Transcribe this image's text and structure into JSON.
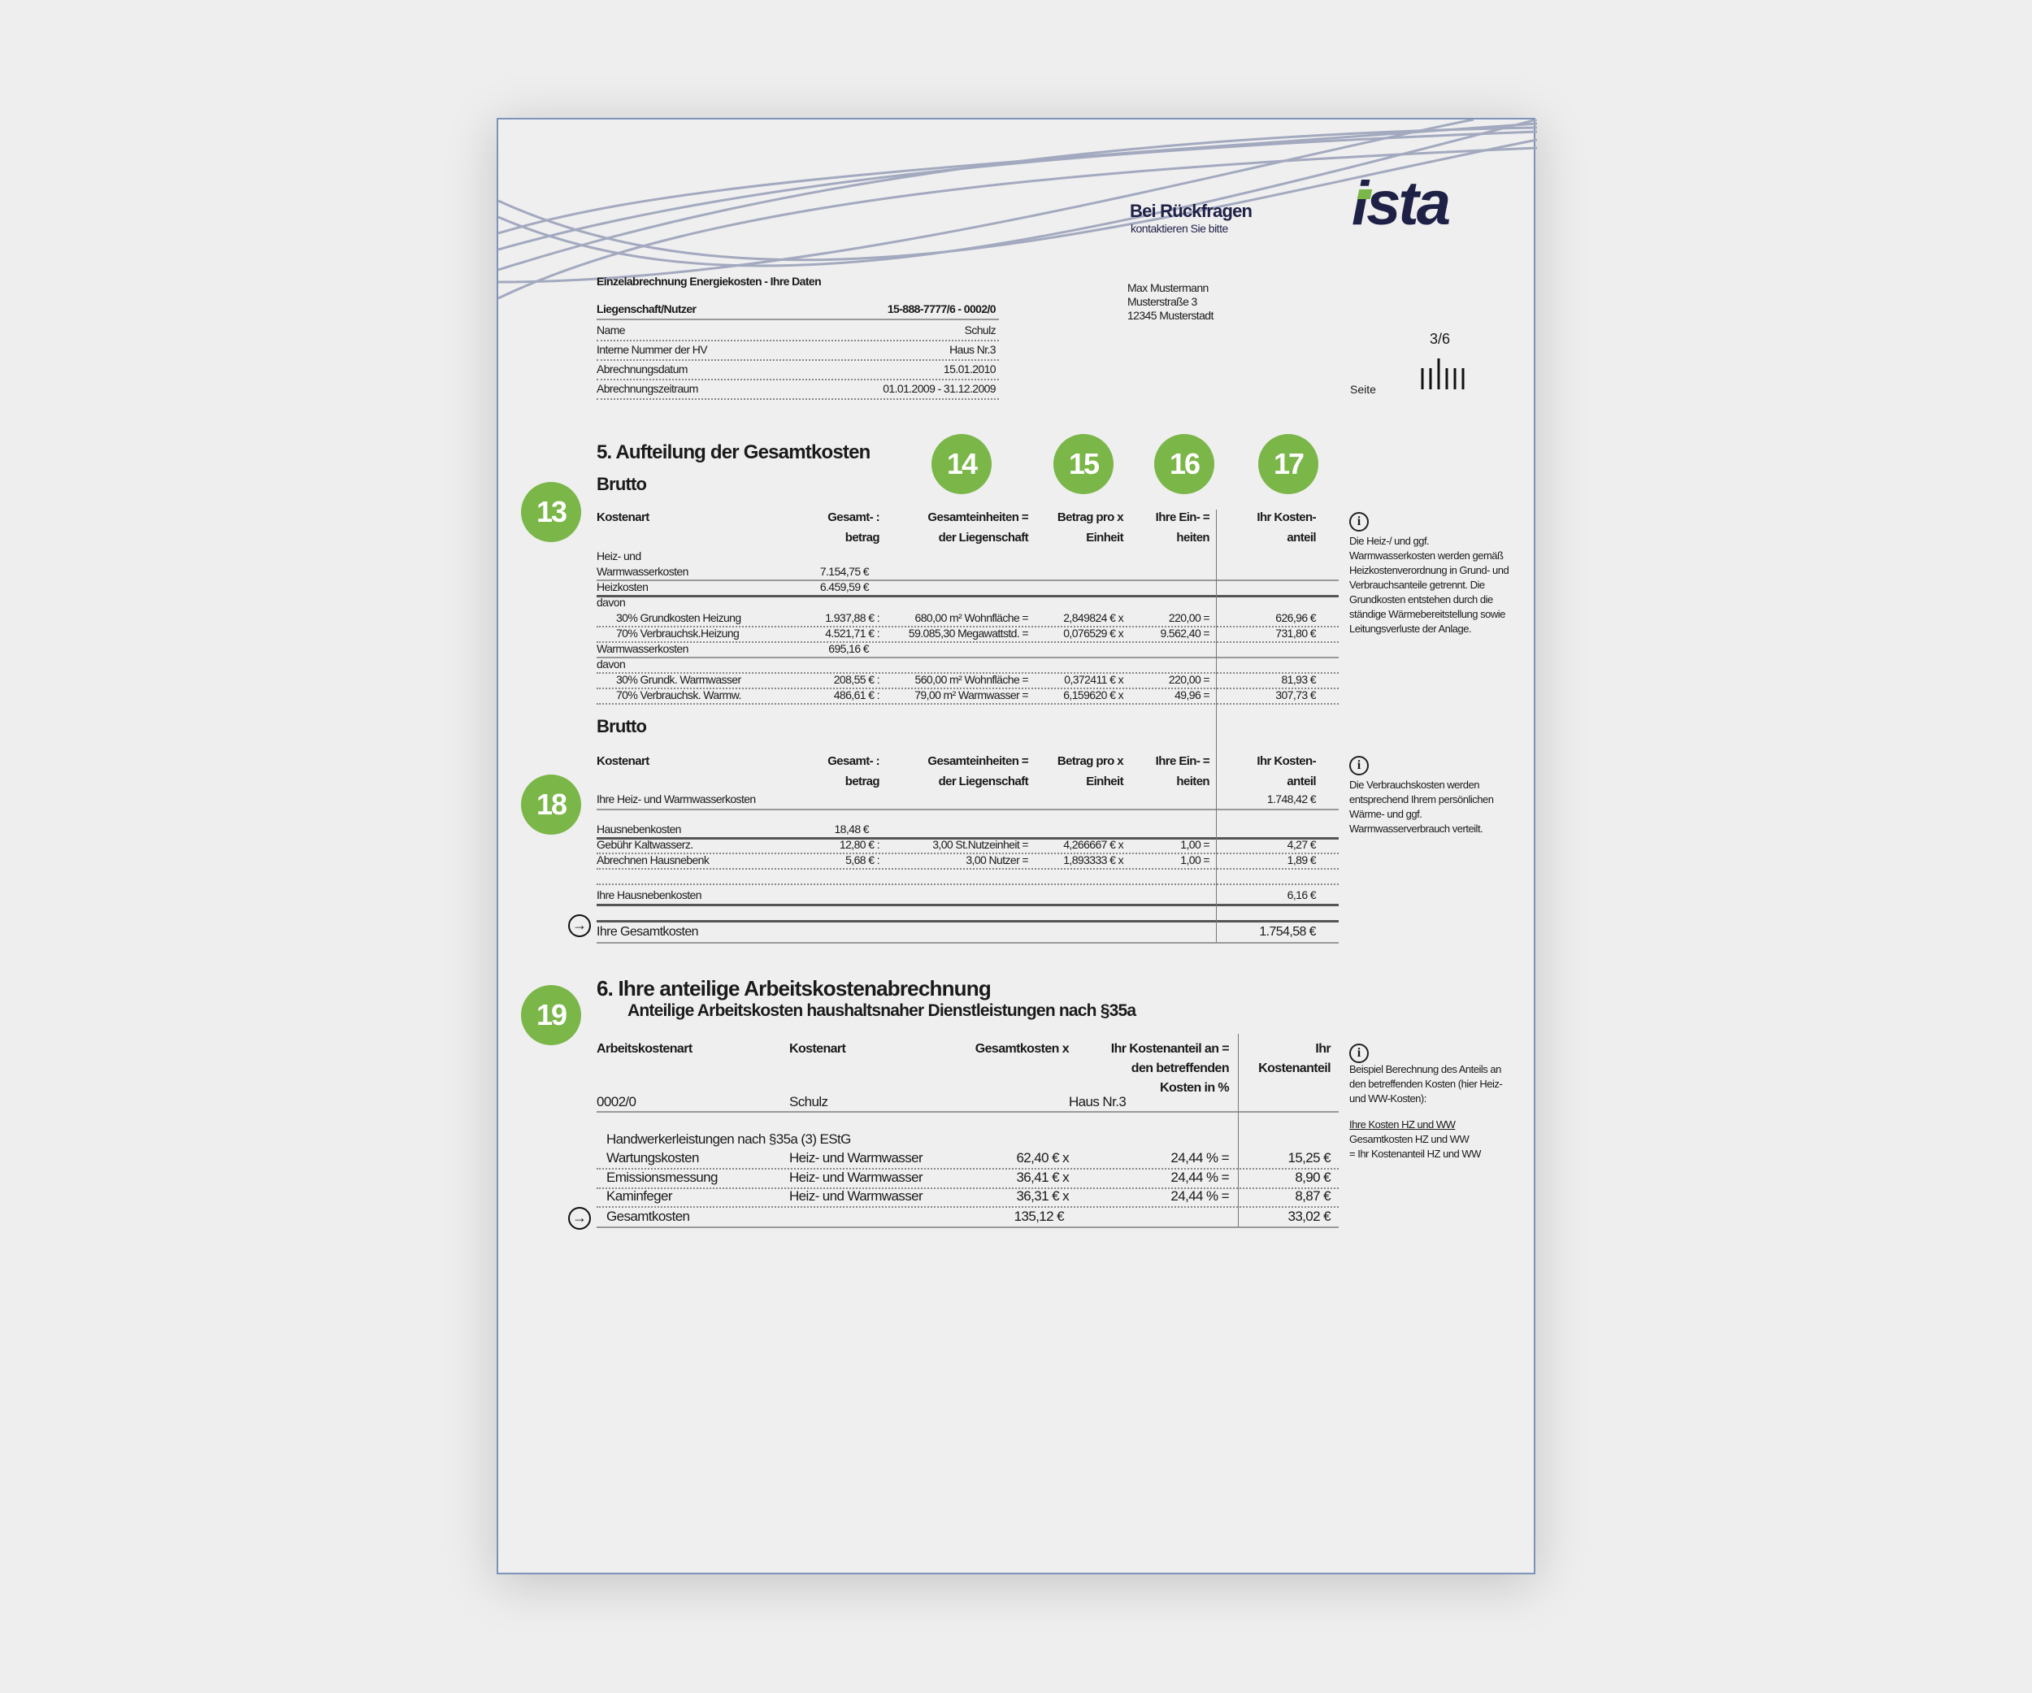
{
  "header": {
    "contact_title": "Bei Rückfragen",
    "contact_sub": "kontaktieren Sie bitte",
    "logo": "ista",
    "brand_colors": {
      "navy": "#1e2046",
      "green": "#7ab648"
    },
    "address": [
      "Max Mustermann",
      "Musterstraße 3",
      "12345 Musterstadt"
    ],
    "page_number": "3/6",
    "page_label": "Seite"
  },
  "info": {
    "title": "Einzelabrechnung Energiekosten - Ihre Daten",
    "rows": [
      {
        "label": "Liegenschaft/Nutzer",
        "value": "15-888-7777/6 - 0002/0"
      },
      {
        "label": "Name",
        "value": "Schulz"
      },
      {
        "label": "Interne Nummer der HV",
        "value": "Haus Nr.3"
      },
      {
        "label": "Abrechnungsdatum",
        "value": "15.01.2010"
      },
      {
        "label": "Abrechnungszeitraum",
        "value": "01.01.2009 - 31.12.2009"
      }
    ]
  },
  "markers": [
    "13",
    "14",
    "15",
    "16",
    "17",
    "18",
    "19"
  ],
  "section5": {
    "title": "5. Aufteilung der Gesamtkosten",
    "subtitle": "Brutto",
    "headers": [
      [
        "Kostenart",
        ""
      ],
      [
        "Gesamt- :",
        "betrag"
      ],
      [
        "Gesamteinheiten =",
        "der Liegenschaft"
      ],
      [
        "Betrag pro x",
        "Einheit"
      ],
      [
        "Ihre Ein- =",
        "heiten"
      ],
      [
        "Ihr Kosten-",
        "anteil"
      ]
    ],
    "rows": [
      [
        "Heiz- und",
        "",
        "",
        "",
        "",
        ""
      ],
      [
        "Warmwasserkosten",
        "7.154,75 €",
        "",
        "",
        "",
        ""
      ],
      [
        "Heizkosten",
        "6.459,59 €",
        "",
        "",
        "",
        ""
      ],
      [
        "davon",
        "",
        "",
        "",
        "",
        ""
      ],
      [
        "30% Grundkosten Heizung",
        "1.937,88 € :",
        "680,00 m² Wohnfläche =",
        "2,849824 € x",
        "220,00 =",
        "626,96 €"
      ],
      [
        "70% Verbrauchsk.Heizung",
        "4.521,71 € :",
        "59.085,30 Megawattstd. =",
        "0,076529 € x",
        "9.562,40 =",
        "731,80 €"
      ],
      [
        "Warmwasserkosten",
        "695,16 €",
        "",
        "",
        "",
        ""
      ],
      [
        "davon",
        "",
        "",
        "",
        "",
        ""
      ],
      [
        "30% Grundk. Warmwasser",
        "208,55 € :",
        "560,00 m² Wohnfläche =",
        "0,372411 € x",
        "220,00 =",
        "81,93 €"
      ],
      [
        "70% Verbrauchsk. Warmw.",
        "486,61 € :",
        "79,00 m² Warmwasser =",
        "6,159620 € x",
        "49,96 =",
        "307,73 €"
      ]
    ],
    "info": "Die Heiz-/ und ggf. Warmwasserkosten werden gemäß Heizkostenverordnung in Grund- und Verbrauchsanteile getrennt. Die Grundkosten entstehen durch die ständige Wärmebereitstellung sowie Leitungsverluste der Anlage."
  },
  "section5b": {
    "subtitle": "Brutto",
    "rows": [
      [
        "Ihre Heiz- und Warmwasserkosten",
        "",
        "",
        "",
        "",
        "1.748,42 €"
      ],
      [
        "Hausnebenkosten",
        "18,48 €",
        "",
        "",
        "",
        ""
      ],
      [
        "Gebühr Kaltwasserz.",
        "12,80 € :",
        "3,00 St.Nutzeinheit =",
        "4,266667 € x",
        "1,00 =",
        "4,27 €"
      ],
      [
        "Abrechnen Hausnebenk",
        "5,68 € :",
        "3,00 Nutzer =",
        "1,893333 € x",
        "1,00 =",
        "1,89 €"
      ],
      [
        "Ihre Hausnebenkosten",
        "",
        "",
        "",
        "",
        "6,16 €"
      ],
      [
        "Ihre Gesamtkosten",
        "",
        "",
        "",
        "",
        "1.754,58 €"
      ]
    ],
    "info": "Die Verbrauchskosten werden entsprechend Ihrem persönlichen Wärme- und ggf. Warmwasserverbrauch verteilt."
  },
  "section6": {
    "title": "6.  Ihre anteilige Arbeitskostenabrechnung",
    "subtitle": "Anteilige Arbeitskosten haushaltsnaher Dienstleistungen nach §35a",
    "headers": {
      "art": "Arbeitskostenart",
      "kostenart": "Kostenart",
      "gesamt": "Gesamtkosten x",
      "anteil_pct": [
        "Ihr Kostenanteil an =",
        "den betreffenden",
        "Kosten in %"
      ],
      "anteil": [
        "Ihr",
        "Kostenanteil"
      ]
    },
    "id_row": [
      "0002/0",
      "Schulz",
      "Haus Nr.3"
    ],
    "group": "Handwerkerleistungen nach §35a (3) EStG",
    "rows": [
      [
        "Wartungskosten",
        "Heiz- und Warmwasser",
        "62,40 € x",
        "24,44 % =",
        "15,25 €"
      ],
      [
        "Emissionsmessung",
        "Heiz- und Warmwasser",
        "36,41 € x",
        "24,44 % =",
        "8,90 €"
      ],
      [
        "Kaminfeger",
        "Heiz- und Warmwasser",
        "36,31 € x",
        "24,44 % =",
        "8,87 €"
      ]
    ],
    "total": [
      "Gesamtkosten",
      "135,12 €",
      "33,02 €"
    ],
    "info": "Beispiel Berechnung des Anteils an den betreffenden Kosten (hier Heiz- und WW-Kosten):",
    "formula": [
      "Ihre Kosten HZ und WW",
      "Gesamtkosten HZ und WW",
      "= Ihr Kostenanteil HZ und WW"
    ]
  }
}
